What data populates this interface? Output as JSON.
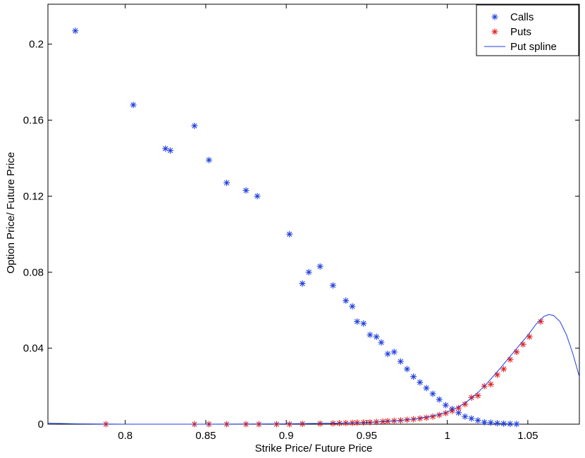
{
  "chart_data": {
    "type": "scatter",
    "xlabel": "Strike Price/ Future Price",
    "ylabel": "Option Price/ Future Price",
    "xlim": [
      0.752,
      1.082
    ],
    "ylim": [
      0,
      0.221
    ],
    "xticks": [
      0.8,
      0.85,
      0.9,
      0.95,
      1,
      1.05
    ],
    "xtick_labels": [
      "0.8",
      "0.85",
      "0.9",
      "0.95",
      "1",
      "1.05"
    ],
    "yticks": [
      0,
      0.04,
      0.08,
      0.12,
      0.16,
      0.2
    ],
    "ytick_labels": [
      "0",
      "0.04",
      "0.08",
      "0.12",
      "0.16",
      "0.2"
    ],
    "grid": false,
    "legend_position": "top-right",
    "series": [
      {
        "name": "Calls",
        "kind": "scatter",
        "marker": "asterisk",
        "color": "#1f3fdf",
        "points": [
          [
            0.769,
            0.207
          ],
          [
            0.805,
            0.168
          ],
          [
            0.825,
            0.145
          ],
          [
            0.828,
            0.144
          ],
          [
            0.843,
            0.157
          ],
          [
            0.852,
            0.139
          ],
          [
            0.863,
            0.127
          ],
          [
            0.875,
            0.123
          ],
          [
            0.882,
            0.12
          ],
          [
            0.902,
            0.1
          ],
          [
            0.91,
            0.074
          ],
          [
            0.914,
            0.08
          ],
          [
            0.921,
            0.083
          ],
          [
            0.929,
            0.073
          ],
          [
            0.937,
            0.065
          ],
          [
            0.941,
            0.062
          ],
          [
            0.944,
            0.054
          ],
          [
            0.948,
            0.053
          ],
          [
            0.952,
            0.047
          ],
          [
            0.956,
            0.046
          ],
          [
            0.959,
            0.043
          ],
          [
            0.963,
            0.037
          ],
          [
            0.967,
            0.038
          ],
          [
            0.971,
            0.033
          ],
          [
            0.975,
            0.029
          ],
          [
            0.979,
            0.025
          ],
          [
            0.983,
            0.022
          ],
          [
            0.987,
            0.019
          ],
          [
            0.991,
            0.016
          ],
          [
            0.995,
            0.013
          ],
          [
            0.999,
            0.01
          ],
          [
            1.003,
            0.008
          ],
          [
            1.007,
            0.006
          ],
          [
            1.011,
            0.004
          ],
          [
            1.015,
            0.003
          ],
          [
            1.019,
            0.002
          ],
          [
            1.023,
            0.001
          ],
          [
            1.027,
            0.0008
          ],
          [
            1.031,
            0.0005
          ],
          [
            1.035,
            0.0003
          ],
          [
            1.039,
            0.0002
          ],
          [
            1.043,
            0.0001
          ]
        ]
      },
      {
        "name": "Puts",
        "kind": "scatter",
        "marker": "asterisk",
        "color": "#e02020",
        "points": [
          [
            0.788,
            0.0
          ],
          [
            0.843,
            0.0
          ],
          [
            0.852,
            0.0
          ],
          [
            0.863,
            0.0
          ],
          [
            0.875,
            0.0
          ],
          [
            0.883,
            0.0
          ],
          [
            0.894,
            0.0
          ],
          [
            0.902,
            0.0
          ],
          [
            0.91,
            0.0002
          ],
          [
            0.921,
            0.0003
          ],
          [
            0.929,
            0.0004
          ],
          [
            0.933,
            0.0005
          ],
          [
            0.937,
            0.0006
          ],
          [
            0.941,
            0.0007
          ],
          [
            0.944,
            0.0008
          ],
          [
            0.948,
            0.0009
          ],
          [
            0.952,
            0.001
          ],
          [
            0.956,
            0.0012
          ],
          [
            0.96,
            0.0014
          ],
          [
            0.963,
            0.0016
          ],
          [
            0.967,
            0.0018
          ],
          [
            0.971,
            0.002
          ],
          [
            0.975,
            0.0023
          ],
          [
            0.979,
            0.0026
          ],
          [
            0.983,
            0.003
          ],
          [
            0.987,
            0.0034
          ],
          [
            0.991,
            0.004
          ],
          [
            0.995,
            0.0048
          ],
          [
            0.999,
            0.0058
          ],
          [
            1.003,
            0.007
          ],
          [
            1.007,
            0.0085
          ],
          [
            1.011,
            0.0105
          ],
          [
            1.015,
            0.014
          ],
          [
            1.019,
            0.015
          ],
          [
            1.023,
            0.02
          ],
          [
            1.027,
            0.021
          ],
          [
            1.031,
            0.026
          ],
          [
            1.035,
            0.029
          ],
          [
            1.039,
            0.034
          ],
          [
            1.043,
            0.038
          ],
          [
            1.047,
            0.042
          ],
          [
            1.051,
            0.046
          ],
          [
            1.058,
            0.054
          ]
        ]
      },
      {
        "name": "Put spline",
        "kind": "line",
        "color": "#1f3fdf",
        "points": [
          [
            0.752,
            0.0005
          ],
          [
            0.77,
            0.0002
          ],
          [
            0.8,
            0.0
          ],
          [
            0.85,
            0.0
          ],
          [
            0.9,
            0.0002
          ],
          [
            0.93,
            0.0005
          ],
          [
            0.95,
            0.0009
          ],
          [
            0.96,
            0.0013
          ],
          [
            0.97,
            0.0019
          ],
          [
            0.98,
            0.0028
          ],
          [
            0.99,
            0.0042
          ],
          [
            0.995,
            0.0051
          ],
          [
            1.0,
            0.0064
          ],
          [
            1.005,
            0.0082
          ],
          [
            1.01,
            0.0106
          ],
          [
            1.015,
            0.0137
          ],
          [
            1.02,
            0.0175
          ],
          [
            1.025,
            0.0218
          ],
          [
            1.03,
            0.0266
          ],
          [
            1.035,
            0.0316
          ],
          [
            1.04,
            0.0367
          ],
          [
            1.045,
            0.0418
          ],
          [
            1.05,
            0.0468
          ],
          [
            1.055,
            0.0525
          ],
          [
            1.06,
            0.0567
          ],
          [
            1.063,
            0.0577
          ],
          [
            1.066,
            0.0572
          ],
          [
            1.07,
            0.054
          ],
          [
            1.074,
            0.047
          ],
          [
            1.078,
            0.037
          ],
          [
            1.082,
            0.025
          ]
        ]
      }
    ]
  }
}
